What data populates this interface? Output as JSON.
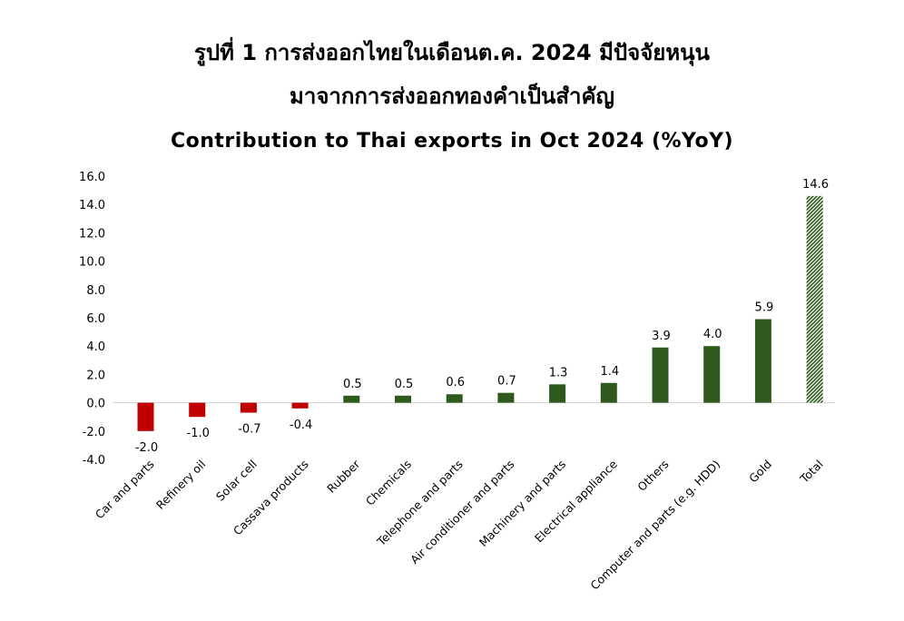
{
  "header": {
    "title_line1": "รูปที่ 1 การส่งออกไทยในเดือนต.ค. 2024 มีปัจจัยหนุน",
    "title_line2": "มาจากการส่งออกทองคำเป็นสำคัญ"
  },
  "chart_data": {
    "type": "bar",
    "title": "Contribution to Thai exports in Oct 2024 (%YoY)",
    "xlabel": "",
    "ylabel": "",
    "ylim": [
      -4.0,
      16.0
    ],
    "yticks": [
      "16.0",
      "14.0",
      "12.0",
      "10.0",
      "8.0",
      "6.0",
      "4.0",
      "2.0",
      "0.0",
      "-2.0",
      "-4.0"
    ],
    "categories": [
      "Car and parts",
      "Refinery oil",
      "Solar cell",
      "Cassava products",
      "Rubber",
      "Chemicals",
      "Telephone and parts",
      "Air conditioner and parts",
      "Machinery and parts",
      "Electrical appliance",
      "Others",
      "Computer and parts (e.g. HDD)",
      "Gold",
      "Total"
    ],
    "values": [
      -2.0,
      -1.0,
      -0.7,
      -0.4,
      0.5,
      0.5,
      0.6,
      0.7,
      1.3,
      1.4,
      3.9,
      4.0,
      5.9,
      14.6
    ],
    "value_labels": [
      "-2.0",
      "-1.0",
      "-0.7",
      "-0.4",
      "0.5",
      "0.5",
      "0.6",
      "0.7",
      "1.3",
      "1.4",
      "3.9",
      "4.0",
      "5.9",
      "14.6"
    ],
    "grid": false,
    "legend": "none",
    "colors": {
      "negative": "#c00000",
      "positive": "#2e5a1e",
      "total": "#2e5a1e",
      "total_pattern": "hatched"
    }
  }
}
